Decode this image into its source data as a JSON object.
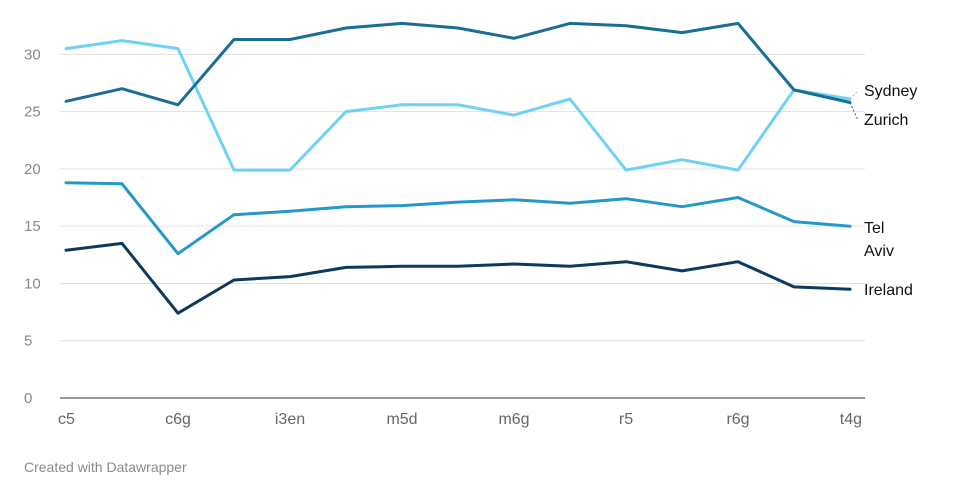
{
  "footer": {
    "credit": "Created with Datawrapper"
  },
  "chart_data": {
    "type": "line",
    "categories": [
      "c5",
      "",
      "c6g",
      "",
      "i3en",
      "",
      "m5d",
      "",
      "m6g",
      "",
      "r5",
      "",
      "r6g",
      "",
      "t4g"
    ],
    "ylim": [
      0,
      33
    ],
    "yticks": [
      0,
      5,
      10,
      15,
      20,
      25,
      30
    ],
    "grid": true,
    "series": [
      {
        "name": "Sydney",
        "label_lines": [
          "Sydney"
        ],
        "color": "#6fd2f5",
        "values": [
          30.5,
          31.2,
          30.5,
          19.9,
          19.9,
          25.0,
          25.6,
          25.6,
          24.7,
          26.1,
          19.9,
          20.8,
          19.9,
          26.9,
          26.1
        ]
      },
      {
        "name": "Zurich",
        "label_lines": [
          "Zurich"
        ],
        "color": "#1a6e96",
        "values": [
          25.9,
          27.0,
          25.6,
          31.3,
          31.3,
          32.3,
          32.7,
          32.3,
          31.4,
          32.7,
          32.5,
          31.9,
          32.7,
          26.9,
          25.8
        ]
      },
      {
        "name": "Tel Aviv",
        "label_lines": [
          "Tel",
          "Aviv"
        ],
        "color": "#2499c9",
        "values": [
          18.8,
          18.7,
          12.6,
          16.0,
          16.3,
          16.7,
          16.8,
          17.1,
          17.3,
          17.0,
          17.4,
          16.7,
          17.5,
          15.4,
          15.0
        ]
      },
      {
        "name": "Ireland",
        "label_lines": [
          "Ireland"
        ],
        "color": "#0d3a5c",
        "values": [
          12.9,
          13.5,
          7.4,
          10.3,
          10.6,
          11.4,
          11.5,
          11.5,
          11.7,
          11.5,
          11.9,
          11.1,
          11.9,
          9.7,
          9.5
        ]
      }
    ]
  }
}
